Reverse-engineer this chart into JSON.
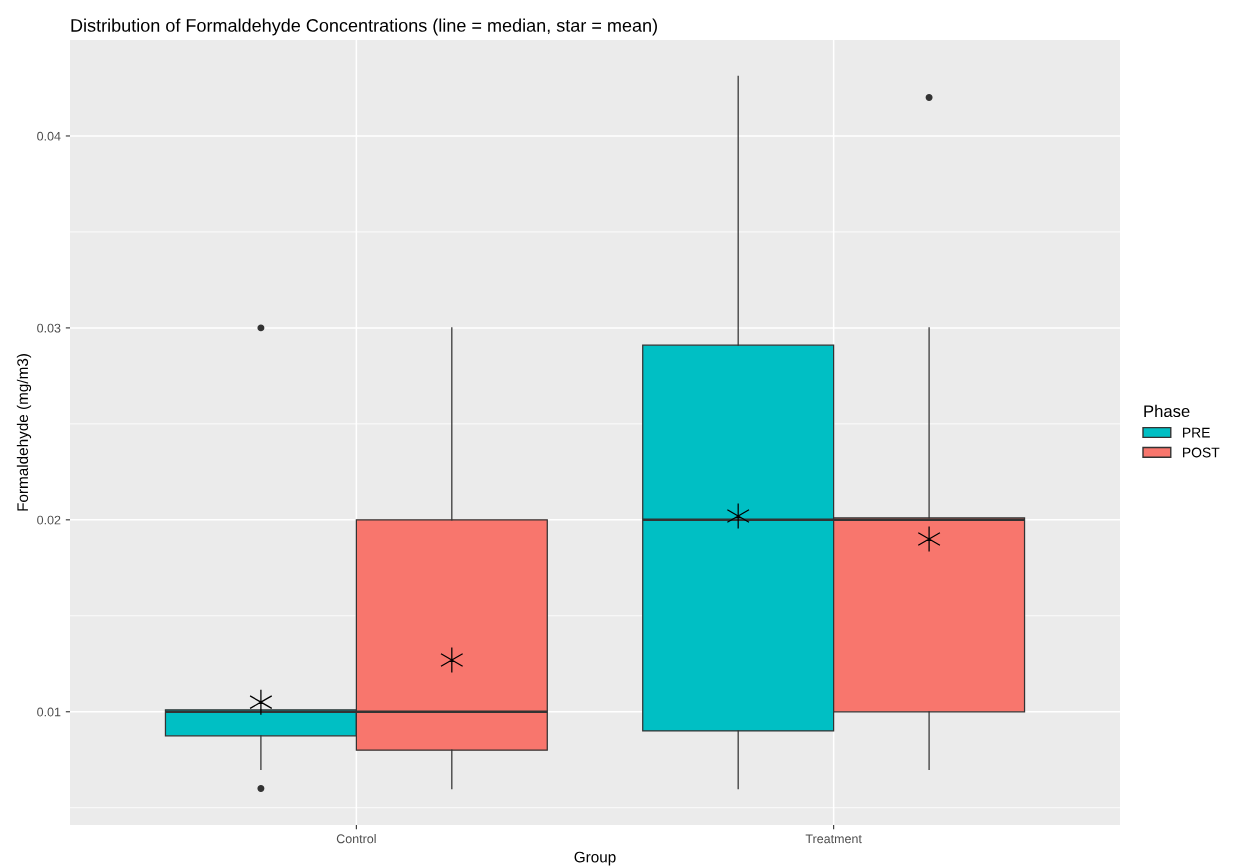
{
  "chart_data": {
    "type": "box",
    "title": "Distribution of Formaldehyde Concentrations (line = median, star = mean)",
    "xlabel": "Group",
    "ylabel": "Formaldehyde (mg/m3)",
    "legend_title": "Phase",
    "legend": "right",
    "grid": true,
    "marker": "star",
    "categories": [
      "Control",
      "Treatment"
    ],
    "ylim": [
      0.0041,
      0.045
    ],
    "yticks": [
      0.01,
      0.02,
      0.03,
      0.04
    ],
    "series": [
      {
        "name": "PRE",
        "color": "#00bfc4",
        "boxes": [
          {
            "low": 0.007,
            "q1": 0.00875,
            "median": 0.01,
            "q3": 0.0101,
            "high": 0.0101,
            "mean": 0.0105,
            "outliers": [
              0.03,
              0.006
            ]
          },
          {
            "low": 0.006,
            "q1": 0.009,
            "median": 0.02,
            "q3": 0.0291,
            "high": 0.0431,
            "mean": 0.0202
          }
        ]
      },
      {
        "name": "POST",
        "color": "#f8766d",
        "boxes": [
          {
            "low": 0.006,
            "q1": 0.008,
            "median": 0.01,
            "q3": 0.02,
            "high": 0.03,
            "mean": 0.0127
          },
          {
            "low": 0.007,
            "q1": 0.01,
            "median": 0.02,
            "q3": 0.0201,
            "high": 0.03,
            "mean": 0.019,
            "outliers": [
              0.042
            ]
          }
        ]
      }
    ]
  }
}
